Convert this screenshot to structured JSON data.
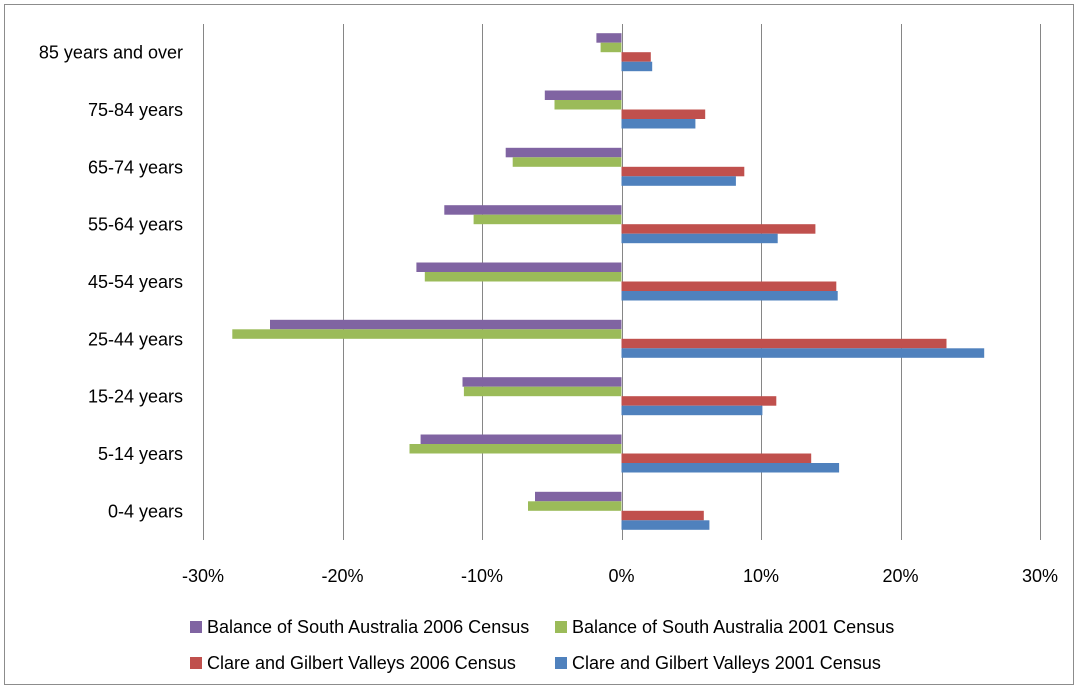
{
  "chart_data": {
    "type": "bar",
    "orientation": "horizontal",
    "categories": [
      "0-4 years",
      "5-14 years",
      "15-24 years",
      "25-44 years",
      "45-54 years",
      "55-64 years",
      "65-74 years",
      "75-84 years",
      "85 years and over"
    ],
    "series": [
      {
        "name": "Balance of South Australia 2006 Census",
        "color": "#8064a2",
        "values": [
          -6.2,
          -14.4,
          -11.4,
          -25.2,
          -14.7,
          -12.7,
          -8.3,
          -5.5,
          -1.8
        ]
      },
      {
        "name": "Balance of South Australia 2001 Census",
        "color": "#9bbb59",
        "values": [
          -6.7,
          -15.2,
          -11.3,
          -27.9,
          -14.1,
          -10.6,
          -7.8,
          -4.8,
          -1.5
        ]
      },
      {
        "name": "Clare and Gilbert Valleys 2006 Census",
        "color": "#c0504d",
        "values": [
          5.9,
          13.6,
          11.1,
          23.3,
          15.4,
          13.9,
          8.8,
          6.0,
          2.1
        ]
      },
      {
        "name": "Clare and Gilbert Valleys 2001 Census",
        "color": "#4f81bd",
        "values": [
          6.3,
          15.6,
          10.1,
          26.0,
          15.5,
          11.2,
          8.2,
          5.3,
          2.2
        ]
      }
    ],
    "x_ticks": [
      "-30%",
      "-20%",
      "-10%",
      "0%",
      "10%",
      "20%",
      "30%"
    ],
    "xlim": [
      -30,
      30
    ],
    "grid": "vertical major gridlines",
    "legend_position": "bottom",
    "title": "",
    "xlabel": "",
    "ylabel": ""
  }
}
